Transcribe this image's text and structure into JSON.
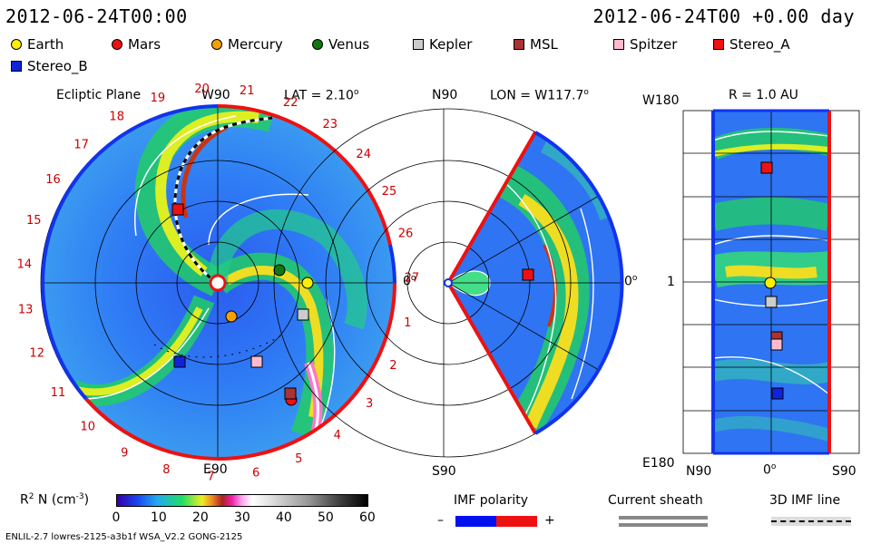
{
  "header": {
    "datetime": "2012-06-24T00:00",
    "right": "2012-06-24T00 +0.00 day"
  },
  "legend": [
    {
      "label": "Earth",
      "shape": "circle",
      "color": "#ffee00"
    },
    {
      "label": "Mars",
      "shape": "circle",
      "color": "#ee1111"
    },
    {
      "label": "Mercury",
      "shape": "circle",
      "color": "#f5a000"
    },
    {
      "label": "Venus",
      "shape": "circle",
      "color": "#117711"
    },
    {
      "label": "Kepler",
      "shape": "square",
      "color": "#cccccc"
    },
    {
      "label": "MSL",
      "shape": "square",
      "color": "#aa3333"
    },
    {
      "label": "Spitzer",
      "shape": "square",
      "color": "#ffbbcc"
    },
    {
      "label": "Stereo_A",
      "shape": "square",
      "color": "#ee1111"
    },
    {
      "label": "Stereo_B",
      "shape": "square",
      "color": "#1122dd"
    }
  ],
  "panel1": {
    "title": "Ecliptic Plane",
    "top_label": "W90",
    "lat": "LAT = 2.10",
    "lat_sup": "o",
    "right_label": "0",
    "right_sup": "o",
    "bottom_label": "E90",
    "sectors": [
      "1",
      "2",
      "3",
      "4",
      "5",
      "6",
      "7",
      "8",
      "9",
      "10",
      "11",
      "12",
      "13",
      "14",
      "15",
      "16",
      "17",
      "18",
      "19",
      "20",
      "21",
      "22",
      "23",
      "24",
      "25",
      "26",
      "27"
    ]
  },
  "panel2": {
    "top_left": "N90",
    "lon": "LON = W117.7",
    "lon_sup": "o",
    "right_label": "0",
    "right_sup": "o",
    "bottom_left": "S90"
  },
  "panel3": {
    "title": "R = 1.0 AU",
    "top_left": "W180",
    "mid_left": "1",
    "bottom_left": "E180",
    "x_left": "N90",
    "x_mid": "0",
    "x_mid_sup": "o",
    "x_right": "S90"
  },
  "colorbar": {
    "label": "R",
    "label_sup": "2",
    "label_rest": " N (cm",
    "label_exp": "-3",
    "label_close": ")",
    "ticks": [
      "0",
      "10",
      "20",
      "30",
      "40",
      "50",
      "60"
    ]
  },
  "imf": {
    "title": "IMF polarity",
    "minus": "–",
    "plus": "+"
  },
  "sheath": {
    "title": "Current sheath"
  },
  "imf3d": {
    "title": "3D IMF line"
  },
  "footer": {
    "left": "ENLIL-2.7 lowres-2125-a3b1f WSA_V2.2 GONG-2125"
  }
}
